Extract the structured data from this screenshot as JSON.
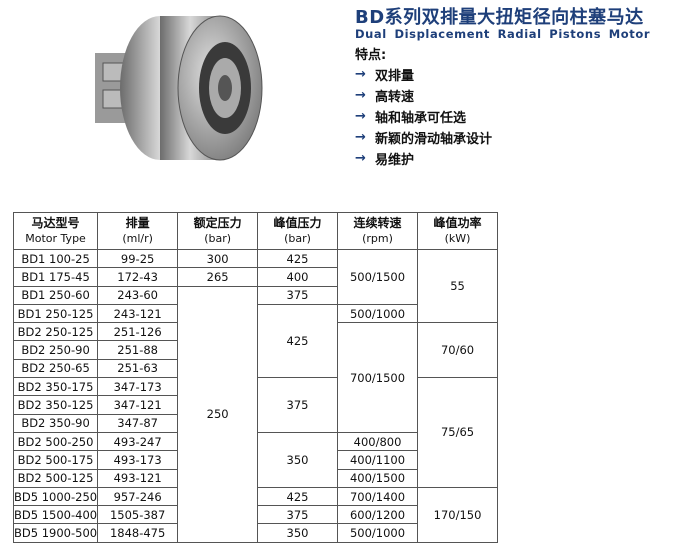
{
  "header": {
    "title": "BD系列双排量大扭矩径向柱塞马达",
    "subtitle": "Dual Displacement Radial Pistons Motor",
    "features_label": "特点:",
    "arrow_glyph": "→",
    "features": [
      "双排量",
      "高转速",
      "轴和轴承可任选",
      "新颖的滑动轴承设计",
      "易维护"
    ]
  },
  "colors": {
    "title": "#1e3f7a",
    "arrow": "#1e3f7a"
  },
  "table": {
    "headers": [
      {
        "zh": "马达型号",
        "en": "Motor Type"
      },
      {
        "zh": "排量",
        "en": "(ml/r)"
      },
      {
        "zh": "额定压力",
        "en": "(bar)"
      },
      {
        "zh": "峰值压力",
        "en": "(bar)"
      },
      {
        "zh": "连续转速",
        "en": "(rpm)"
      },
      {
        "zh": "峰值功率",
        "en": "(kW)"
      }
    ],
    "models": [
      "BD1 100-25",
      "BD1 175-45",
      "BD1 250-60",
      "BD1 250-125",
      "BD2 250-125",
      "BD2 250-90",
      "BD2 250-65",
      "BD2 350-175",
      "BD2 350-125",
      "BD2 350-90",
      "BD2 500-250",
      "BD2 500-175",
      "BD2 500-125",
      "BD5 1000-250",
      "BD5 1500-400",
      "BD5 1900-500"
    ],
    "displacements": [
      "99-25",
      "172-43",
      "243-60",
      "243-121",
      "251-126",
      "251-88",
      "251-63",
      "347-173",
      "347-121",
      "347-87",
      "493-247",
      "493-173",
      "493-121",
      "957-246",
      "1505-387",
      "1848-475"
    ],
    "rated_pressure": [
      "300",
      "265",
      "250"
    ],
    "peak_pressure": [
      "425",
      "400",
      "375",
      "425",
      "375",
      "350",
      "425",
      "375",
      "350"
    ],
    "continuous_speed": [
      "500/1500",
      "500/1000",
      "700/1500",
      "400/800",
      "400/1100",
      "400/1500",
      "700/1400",
      "600/1200",
      "500/1000"
    ],
    "peak_power": [
      "55",
      "70/60",
      "75/65",
      "170/150"
    ]
  }
}
